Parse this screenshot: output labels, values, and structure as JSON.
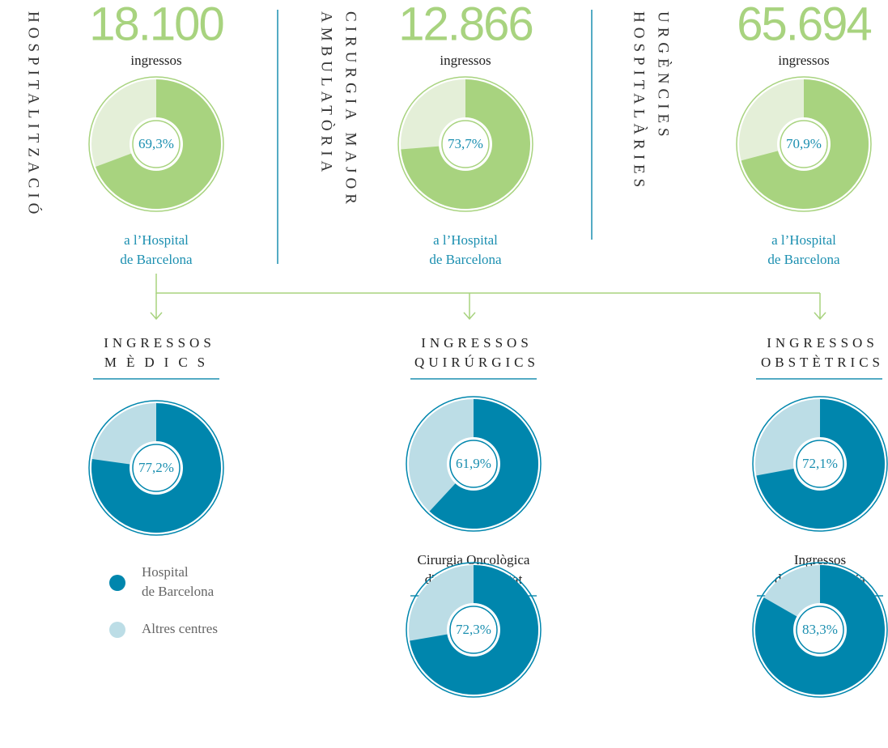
{
  "sections": [
    {
      "title": [
        "HOSPITALITZACIÓ"
      ],
      "count": {
        "value": 18100,
        "label": "18.100"
      },
      "unit": "ingressos",
      "caption": [
        "a l’Hospital",
        "de Barcelona"
      ]
    },
    {
      "title": [
        "CIRURGIA MAJOR",
        "AMBULATÒRIA"
      ],
      "count": {
        "value": 12866,
        "label": "12.866"
      },
      "unit": "ingressos",
      "caption": [
        "a l’Hospital",
        "de Barcelona"
      ]
    },
    {
      "title": [
        "URGÈNCIES",
        "HOSPITALÀRIES"
      ],
      "count": {
        "value": 65694,
        "label": "65.694"
      },
      "unit": "ingressos",
      "caption": [
        "a l’Hospital",
        "de Barcelona"
      ]
    }
  ],
  "subsections": [
    {
      "title": [
        "INGRESSOS",
        "MÈDICS"
      ]
    },
    {
      "title": [
        "INGRESSOS",
        "QUIRÚRGICS"
      ]
    },
    {
      "title": [
        "INGRESSOS",
        "OBSTÈTRICS"
      ]
    },
    {
      "title": [
        "Cirurgia Oncològica",
        "d'alta complexitat"
      ]
    },
    {
      "title": [
        "Ingressos",
        "de Neonatologia"
      ]
    }
  ],
  "legend": [
    {
      "name": [
        "Hospital",
        "de Barcelona"
      ],
      "color": "#0086ad"
    },
    {
      "name": [
        "Altres centres"
      ],
      "color": "#bcdde6"
    }
  ],
  "chart_data": [
    {
      "type": "pie",
      "values": [
        69.3
      ],
      "value_labels": [
        "69,3%"
      ],
      "color": "#a8d37f",
      "rest_color": "#e4efd8"
    },
    {
      "type": "pie",
      "values": [
        73.7
      ],
      "value_labels": [
        "73,7%"
      ],
      "color": "#a8d37f",
      "rest_color": "#e4efd8"
    },
    {
      "type": "pie",
      "values": [
        70.9
      ],
      "value_labels": [
        "70,9%"
      ],
      "color": "#a8d37f",
      "rest_color": "#e4efd8"
    },
    {
      "type": "pie",
      "values": [
        77.2
      ],
      "value_labels": [
        "77,2%"
      ],
      "color": "#0086ad",
      "rest_color": "#bcdde6"
    },
    {
      "type": "pie",
      "values": [
        61.9
      ],
      "value_labels": [
        "61,9%"
      ],
      "color": "#0086ad",
      "rest_color": "#bcdde6"
    },
    {
      "type": "pie",
      "values": [
        72.1
      ],
      "value_labels": [
        "72,1%"
      ],
      "color": "#0086ad",
      "rest_color": "#bcdde6"
    },
    {
      "type": "pie",
      "values": [
        72.3
      ],
      "value_labels": [
        "72,3%"
      ],
      "color": "#0086ad",
      "rest_color": "#bcdde6"
    },
    {
      "type": "pie",
      "values": [
        83.3
      ],
      "value_labels": [
        "83,3%"
      ],
      "color": "#0086ad",
      "rest_color": "#bcdde6"
    }
  ]
}
